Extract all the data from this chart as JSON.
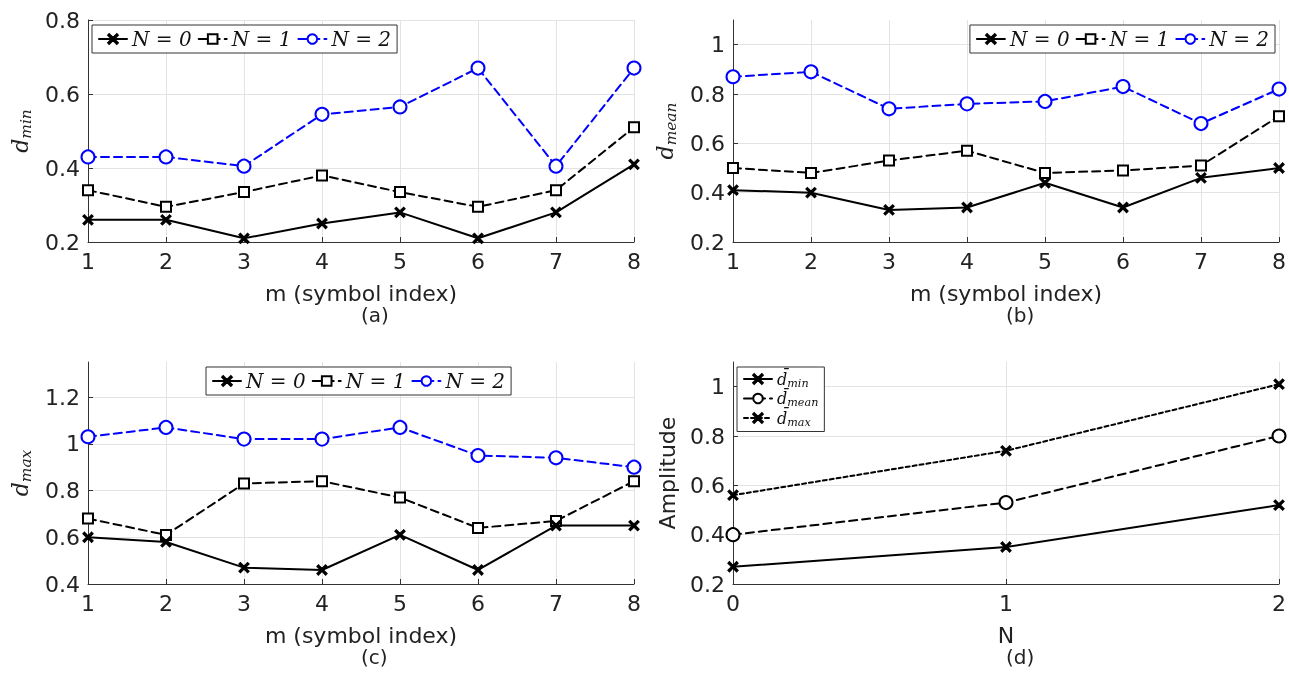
{
  "chart_data": [
    {
      "type": "line",
      "xlabel": "m (symbol index)",
      "ylabel": "d$_{min}$",
      "annotations": [
        "(a)"
      ],
      "x": [
        1,
        2,
        3,
        4,
        5,
        6,
        7,
        8
      ],
      "xlim": [
        1,
        8
      ],
      "xticks": [
        1,
        2,
        3,
        4,
        5,
        6,
        7,
        8
      ],
      "ylim": [
        0.2,
        0.8
      ],
      "yticks": [
        0.2,
        0.4,
        0.6,
        0.8
      ],
      "grid": true,
      "legend": "top left",
      "series": [
        {
          "name": "N = 0",
          "color": "#000000",
          "marker": "cross",
          "line_style": "solid",
          "values": [
            0.26,
            0.26,
            0.21,
            0.25,
            0.28,
            0.21,
            0.28,
            0.41
          ]
        },
        {
          "name": "N = 1",
          "color": "#000000",
          "marker": "square",
          "line_style": "dashed",
          "values": [
            0.34,
            0.295,
            0.335,
            0.38,
            0.335,
            0.295,
            0.34,
            0.51
          ]
        },
        {
          "name": "N = 2",
          "color": "#0000ff",
          "marker": "circle",
          "line_style": "dashed",
          "values": [
            0.43,
            0.43,
            0.405,
            0.545,
            0.565,
            0.67,
            0.405,
            0.67
          ]
        }
      ]
    },
    {
      "type": "line",
      "xlabel": "m (symbol index)",
      "ylabel": "d$_{mean}$",
      "annotations": [
        "(b)"
      ],
      "x": [
        1,
        2,
        3,
        4,
        5,
        6,
        7,
        8
      ],
      "xlim": [
        1,
        8
      ],
      "xticks": [
        1,
        2,
        3,
        4,
        5,
        6,
        7,
        8
      ],
      "ylim": [
        0.2,
        1.1
      ],
      "yticks": [
        0.2,
        0.4,
        0.6,
        0.8,
        1
      ],
      "grid": true,
      "legend": "top right",
      "series": [
        {
          "name": "N = 0",
          "color": "#000000",
          "marker": "cross",
          "line_style": "solid",
          "values": [
            0.41,
            0.4,
            0.33,
            0.34,
            0.44,
            0.34,
            0.46,
            0.5
          ]
        },
        {
          "name": "N = 1",
          "color": "#000000",
          "marker": "square",
          "line_style": "dashed",
          "values": [
            0.5,
            0.48,
            0.53,
            0.57,
            0.48,
            0.49,
            0.51,
            0.71
          ]
        },
        {
          "name": "N = 2",
          "color": "#0000ff",
          "marker": "circle",
          "line_style": "dashed",
          "values": [
            0.87,
            0.89,
            0.74,
            0.76,
            0.77,
            0.83,
            0.68,
            0.82
          ]
        }
      ]
    },
    {
      "type": "line",
      "xlabel": "m (symbol index)",
      "ylabel": "d$_{max}$",
      "annotations": [
        "(c)"
      ],
      "x": [
        1,
        2,
        3,
        4,
        5,
        6,
        7,
        8
      ],
      "xlim": [
        1,
        8
      ],
      "xticks": [
        1,
        2,
        3,
        4,
        5,
        6,
        7,
        8
      ],
      "ylim": [
        0.4,
        1.35
      ],
      "yticks": [
        0.4,
        0.6,
        0.8,
        1,
        1.2
      ],
      "grid": true,
      "legend": "top",
      "series": [
        {
          "name": "N = 0",
          "color": "#000000",
          "marker": "cross",
          "line_style": "solid",
          "values": [
            0.6,
            0.58,
            0.47,
            0.46,
            0.61,
            0.46,
            0.65,
            0.65
          ]
        },
        {
          "name": "N = 1",
          "color": "#000000",
          "marker": "square",
          "line_style": "dashed",
          "values": [
            0.68,
            0.61,
            0.83,
            0.84,
            0.77,
            0.64,
            0.67,
            0.84
          ]
        },
        {
          "name": "N = 2",
          "color": "#0000ff",
          "marker": "circle",
          "line_style": "dashed",
          "values": [
            1.03,
            1.07,
            1.02,
            1.02,
            1.07,
            0.95,
            0.94,
            0.9
          ]
        }
      ]
    },
    {
      "type": "line",
      "xlabel": "N",
      "ylabel": "Amplitude",
      "annotations": [
        "(d)"
      ],
      "x": [
        0,
        1,
        2
      ],
      "xlim": [
        0,
        2
      ],
      "xticks": [
        0,
        1,
        2
      ],
      "ylim": [
        0.2,
        1.1
      ],
      "yticks": [
        0.2,
        0.4,
        0.6,
        0.8,
        1
      ],
      "grid": true,
      "legend": "top left",
      "series": [
        {
          "name": "d̄$_{min}$",
          "color": "#000000",
          "marker": "cross",
          "line_style": "solid",
          "values": [
            0.27,
            0.35,
            0.52
          ]
        },
        {
          "name": "d̄$_{mean}$",
          "color": "#000000",
          "marker": "circle",
          "line_style": "dashed",
          "values": [
            0.4,
            0.53,
            0.8
          ]
        },
        {
          "name": "d̄$_{max}$",
          "color": "#000000",
          "marker": "cross",
          "line_style": "dotted",
          "values": [
            0.56,
            0.74,
            1.01
          ]
        }
      ]
    }
  ]
}
